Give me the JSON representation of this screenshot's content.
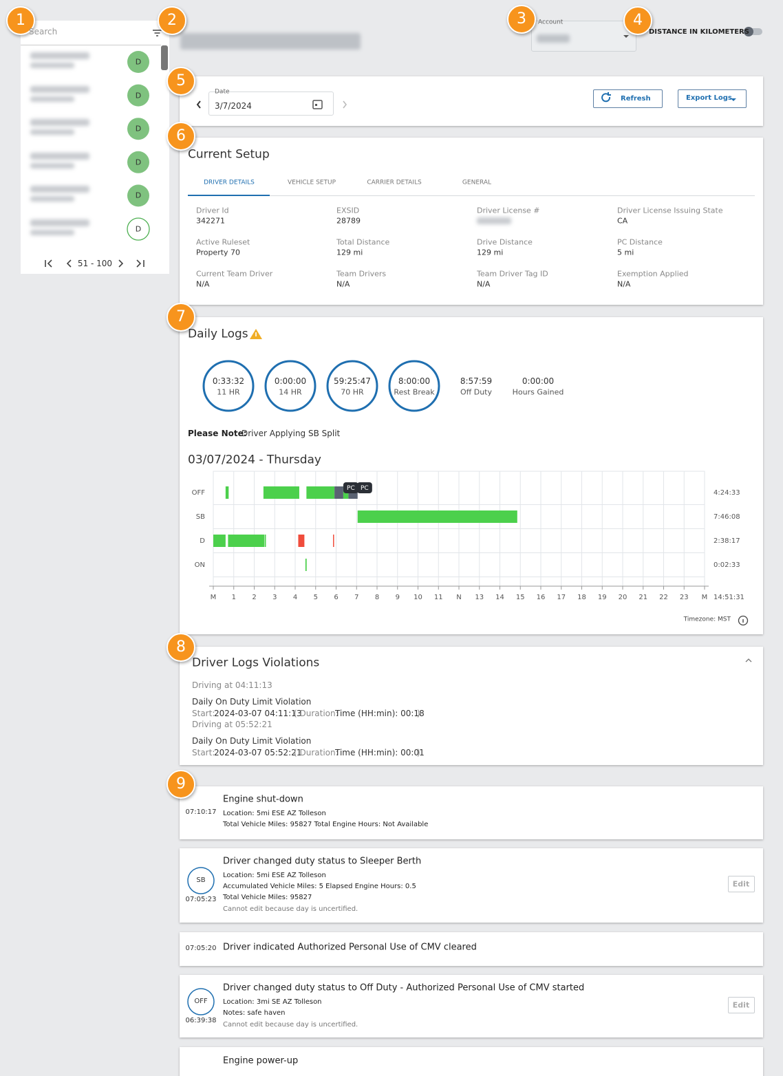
{
  "badges": [
    "1",
    "2",
    "3",
    "4",
    "5",
    "6",
    "7",
    "8",
    "9"
  ],
  "sidebar": {
    "search": "Search",
    "pager": "51 - 100",
    "avatars": [
      "D",
      "D",
      "D",
      "D",
      "D",
      "D"
    ]
  },
  "header": {
    "account_label": "Account",
    "distance_toggle": "DISTANCE IN KILOMETERS"
  },
  "date_bar": {
    "label": "Date",
    "value": "3/7/2024",
    "refresh": "Refresh",
    "export": "Export Logs"
  },
  "setup": {
    "title": "Current Setup",
    "tabs": [
      "DRIVER DETAILS",
      "VEHICLE SETUP",
      "CARRIER DETAILS",
      "GENERAL"
    ],
    "fields": [
      {
        "label": "Driver Id",
        "value": "342271"
      },
      {
        "label": "EXSID",
        "value": "28789"
      },
      {
        "label": "Driver License #",
        "value": null
      },
      {
        "label": "Driver License Issuing State",
        "value": "CA"
      },
      {
        "label": "Active Ruleset",
        "value": "Property 70"
      },
      {
        "label": "Total Distance",
        "value": "129 mi"
      },
      {
        "label": "Drive Distance",
        "value": "129 mi"
      },
      {
        "label": "PC Distance",
        "value": "5 mi"
      },
      {
        "label": "Current Team Driver",
        "value": "N/A"
      },
      {
        "label": "Team Drivers",
        "value": "N/A"
      },
      {
        "label": "Team Driver Tag ID",
        "value": "N/A"
      },
      {
        "label": "Exemption Applied",
        "value": "N/A"
      }
    ]
  },
  "daily_logs": {
    "title": "Daily Logs",
    "clocks": [
      {
        "value": "0:33:32",
        "label": "11 HR"
      },
      {
        "value": "0:00:00",
        "label": "14 HR"
      },
      {
        "value": "59:25:47",
        "label": "70 HR"
      },
      {
        "value": "8:00:00",
        "label": "Rest Break"
      }
    ],
    "totals": [
      {
        "value": "8:57:59",
        "label": "Off Duty"
      },
      {
        "value": "0:00:00",
        "label": "Hours Gained"
      }
    ],
    "note_label": "Please Note:",
    "note": "Driver Applying SB Split",
    "date_heading": "03/07/2024 - Thursday",
    "graph": {
      "xlim": [
        0,
        24
      ],
      "hour_labels": [
        "M",
        "1",
        "2",
        "3",
        "4",
        "5",
        "6",
        "7",
        "8",
        "9",
        "10",
        "11",
        "N",
        "13",
        "14",
        "15",
        "16",
        "17",
        "18",
        "19",
        "20",
        "21",
        "22",
        "23",
        "M"
      ],
      "rows": [
        {
          "label": "OFF",
          "total": "4:24:33",
          "segments": [
            {
              "start": 0.6,
              "end": 0.75,
              "color": "#4cd04c"
            },
            {
              "start": 2.45,
              "end": 4.2,
              "color": "#4cd04c"
            },
            {
              "start": 4.55,
              "end": 5.92,
              "color": "#4cd04c"
            },
            {
              "start": 5.92,
              "end": 6.35,
              "color": "#5a6272"
            },
            {
              "start": 6.35,
              "end": 6.6,
              "color": "#4cd04c"
            },
            {
              "start": 6.6,
              "end": 7.05,
              "color": "#5a6272"
            }
          ]
        },
        {
          "label": "SB",
          "total": "7:46:08",
          "segments": [
            {
              "start": 7.05,
              "end": 14.85,
              "color": "#4cd04c"
            }
          ]
        },
        {
          "label": "D",
          "total": "2:38:17",
          "segments": [
            {
              "start": 0,
              "end": 0.6,
              "color": "#4cd04c"
            },
            {
              "start": 0.72,
              "end": 2.5,
              "color": "#4cd04c"
            },
            {
              "start": 2.52,
              "end": 2.55,
              "color": "#4cd04c"
            },
            {
              "start": 4.15,
              "end": 4.45,
              "color": "#f04c3c"
            },
            {
              "start": 5.85,
              "end": 5.9,
              "color": "#f04c3c"
            }
          ]
        },
        {
          "label": "ON",
          "total": "0:02:33",
          "segments": [
            {
              "start": 4.5,
              "end": 4.56,
              "color": "#4cd04c"
            }
          ]
        }
      ],
      "annotations": [
        {
          "text": "PC",
          "hour": 6.72
        },
        {
          "text": "PC",
          "hour": 7.39
        }
      ],
      "total": "14:51:31"
    },
    "timezone": "Timezone: MST"
  },
  "violations": {
    "title": "Driver Logs Violations",
    "start_label": "Start:",
    "duration_label": "( Duration:",
    "close": ")",
    "items": [
      {
        "context": "Driving at 04:11:13",
        "name": "Daily On Duty Limit Violation",
        "start": "2024-03-07 04:11:13",
        "duration": "Time (HH:min): 00:18"
      },
      {
        "context": "Driving at 05:52:21",
        "name": "Daily On Duty Limit Violation",
        "start": "2024-03-07 05:52:21",
        "duration": "Time (HH:min): 00:01"
      }
    ]
  },
  "events": [
    {
      "time": "07:10:17",
      "title": "Engine shut-down",
      "lines": [
        "Location: 5mi ESE AZ Tolleson",
        "Total Vehicle Miles: 95827  Total Engine Hours: Not Available"
      ]
    },
    {
      "badge": "SB",
      "time": "07:05:23",
      "title": "Driver changed duty status to Sleeper Berth",
      "lines": [
        "Location: 5mi ESE AZ Tolleson",
        "Accumulated Vehicle Miles: 5  Elapsed Engine Hours: 0.5",
        "Total Vehicle Miles: 95827"
      ],
      "note": "Cannot edit because day is uncertified.",
      "edit": "Edit"
    },
    {
      "time": "07:05:20",
      "title": "Driver indicated Authorized Personal Use of CMV cleared",
      "lines": []
    },
    {
      "badge": "OFF",
      "time": "06:39:38",
      "title": "Driver changed duty status to Off Duty - Authorized Personal Use of CMV started",
      "lines": [
        "Location: 3mi SE AZ Tolleson",
        "Notes: safe haven"
      ],
      "note": "Cannot edit because day is uncertified.",
      "edit": "Edit"
    },
    {
      "title": "Engine power-up",
      "lines": []
    }
  ]
}
